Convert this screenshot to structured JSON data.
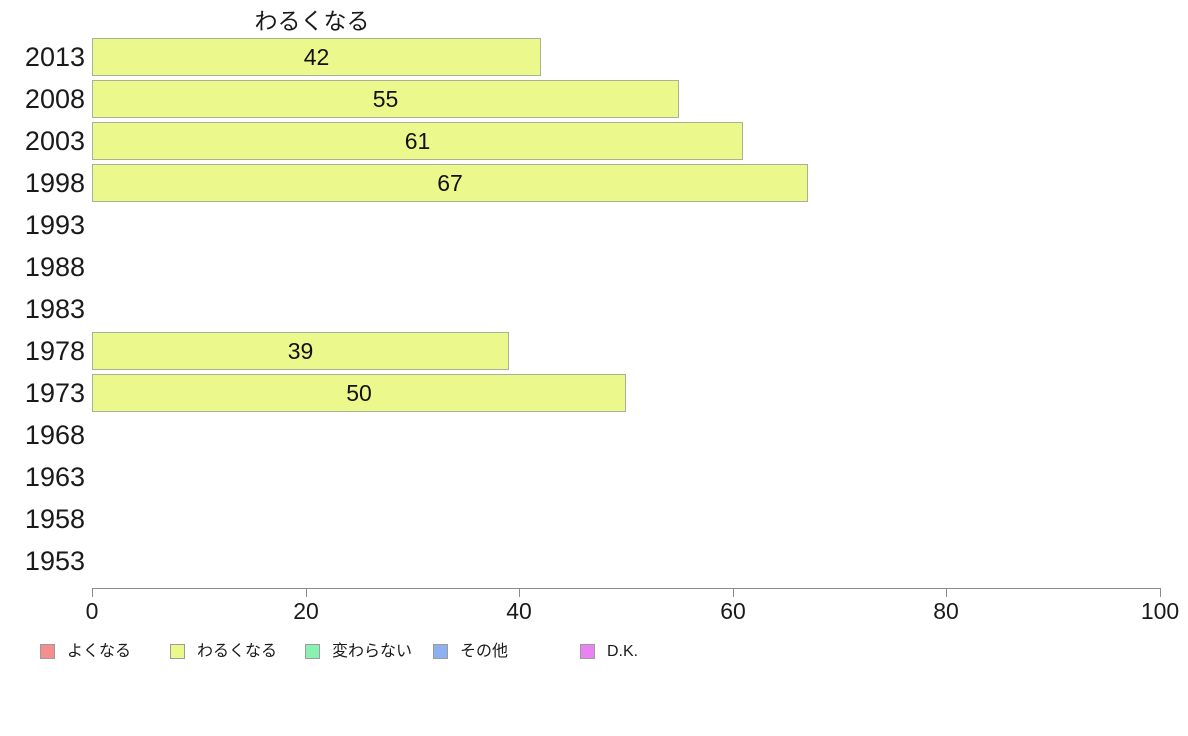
{
  "chart_data": {
    "type": "bar",
    "orientation": "horizontal",
    "title": "わるくなる",
    "categories": [
      "2013",
      "2008",
      "2003",
      "1998",
      "1993",
      "1988",
      "1983",
      "1978",
      "1973",
      "1968",
      "1963",
      "1958",
      "1953"
    ],
    "values": [
      42,
      55,
      61,
      67,
      null,
      null,
      null,
      39,
      50,
      null,
      null,
      null,
      null
    ],
    "xlabel": "",
    "ylabel": "",
    "xlim": [
      0,
      100
    ],
    "x_ticks": [
      0,
      20,
      40,
      60,
      80,
      100
    ],
    "grid": false,
    "bar_color": "#ebf98c",
    "bar_border_color": "#aab09a",
    "legend_position": "bottom-left",
    "legend": [
      {
        "label": "よくなる",
        "color": "#f58f8f"
      },
      {
        "label": "わるくなる",
        "color": "#ebf98c"
      },
      {
        "label": "変わらない",
        "color": "#8af2b1"
      },
      {
        "label": "その他",
        "color": "#8cb0f0"
      },
      {
        "label": "D.K.",
        "color": "#ea83f2"
      }
    ]
  }
}
